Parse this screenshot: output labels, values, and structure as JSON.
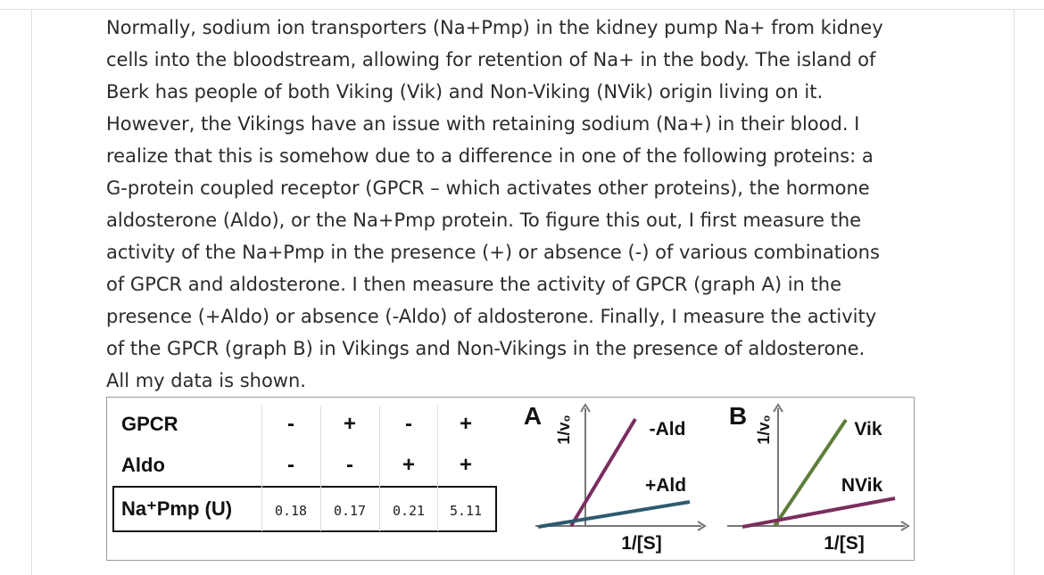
{
  "paragraph": {
    "lines": [
      "Normally, sodium ion transporters (Na+Pmp) in the kidney pump Na+ from kidney",
      "cells into the bloodstream, allowing for retention of Na+ in the body. The island of",
      "Berk has people of both Viking (Vik) and Non-Viking (NVik) origin living on it.",
      "However, the Vikings have an issue with retaining sodium (Na+) in their blood. I",
      "realize that this is somehow due to a difference in one of the following proteins: a",
      "G-protein coupled receptor (GPCR – which activates other proteins), the hormone",
      "aldosterone (Aldo), or the Na+Pmp protein. To figure this out, I first measure the",
      "activity of the Na+Pmp in the presence (+) or absence (-) of various combinations",
      "of GPCR and aldosterone. I then measure the activity of GPCR (graph A) in the",
      "presence (+Aldo) or absence (-Aldo) of aldosterone. Finally, I measure the activity",
      "of the GPCR (graph B) in Vikings and Non-Vikings in the presence of aldosterone.",
      "All my data is shown."
    ]
  },
  "figure": {
    "table": {
      "rows": [
        {
          "label": "GPCR",
          "cells": [
            "-",
            "+",
            "-",
            "+"
          ]
        },
        {
          "label": "Aldo",
          "cells": [
            "-",
            "-",
            "+",
            "+"
          ]
        },
        {
          "label": "Na⁺Pmp (U)",
          "cells": [
            "0.18",
            "0.17",
            "0.21",
            "5.11"
          ]
        }
      ]
    },
    "graph_a": {
      "panel": "A",
      "y_label": "1/v₀",
      "x_label": "1/[S]",
      "line_labels": [
        "-Ald",
        "+Ald"
      ]
    },
    "graph_b": {
      "panel": "B",
      "y_label": "1/v₀",
      "x_label": "1/[S]",
      "line_labels": [
        "Vik",
        "NVik"
      ]
    }
  }
}
